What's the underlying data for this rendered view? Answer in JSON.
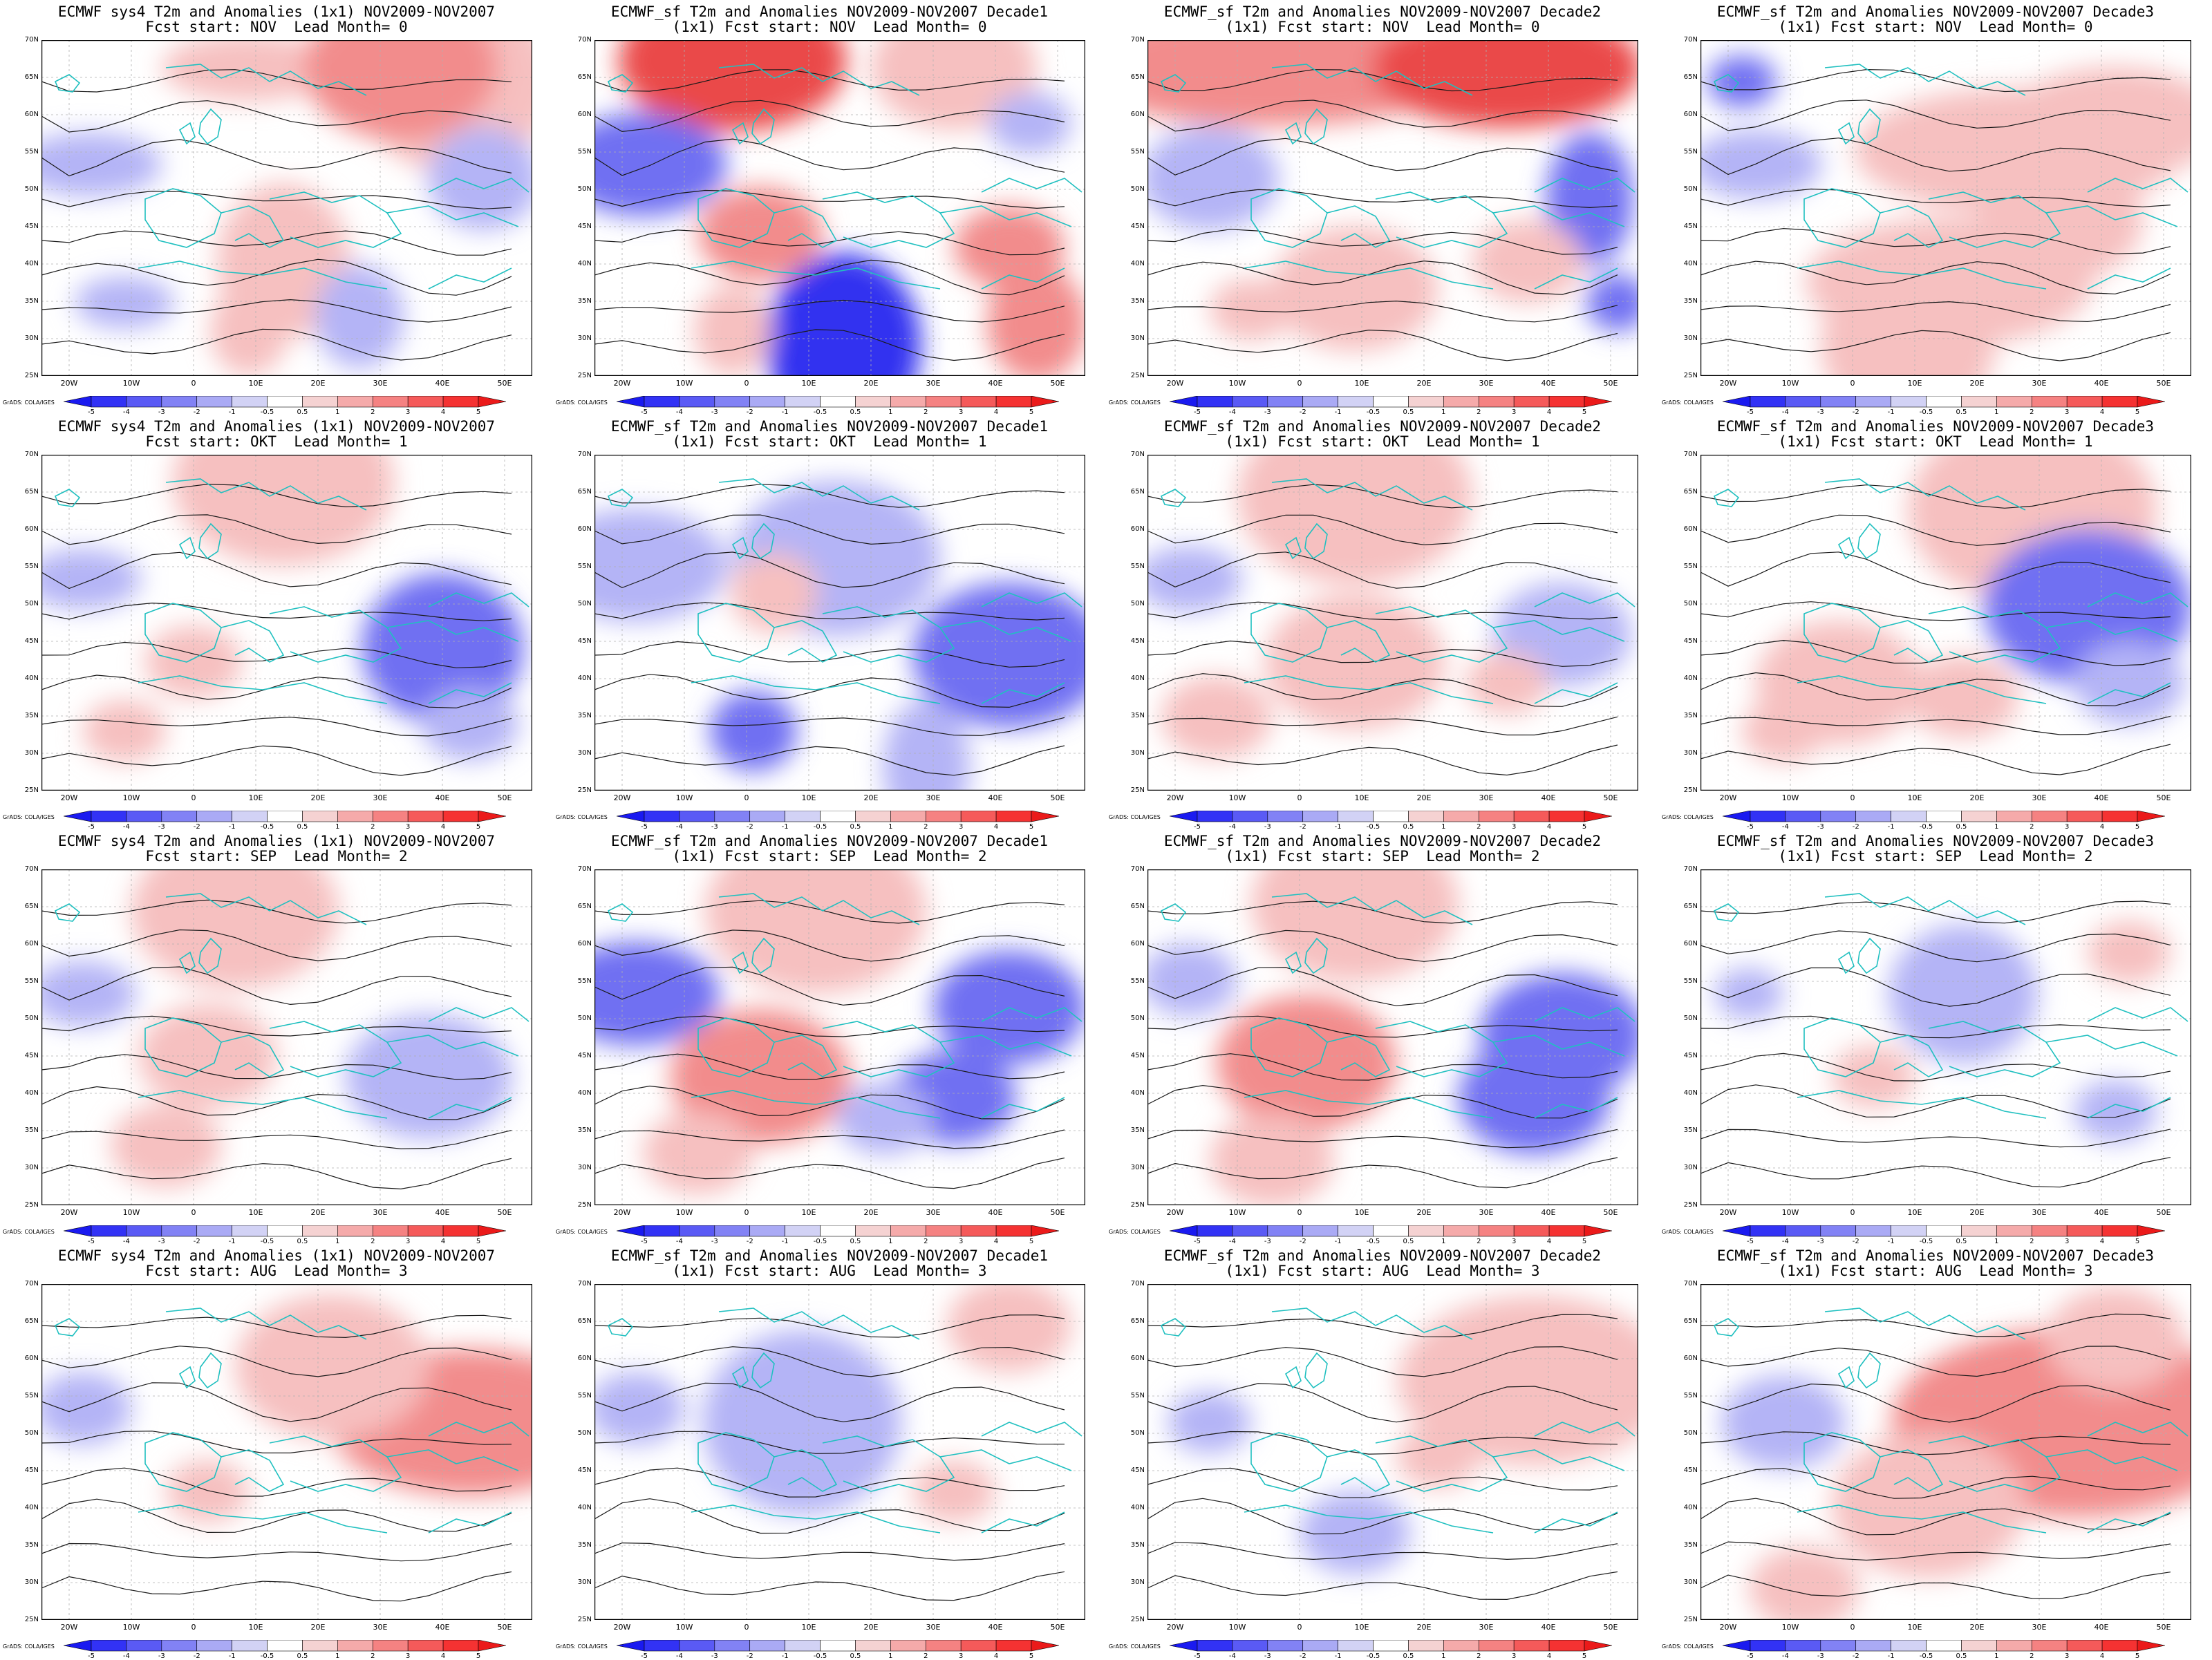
{
  "panels": [
    {
      "id": "r0c0",
      "title_line1": "ECMWF sys4 T2m and Anomalies (1x1) NOV2009-NOV2007",
      "title_line2": "Fcst start: NOV  Lead Month= 0"
    },
    {
      "id": "r0c1",
      "title_line1": "ECMWF_sf T2m and Anomalies NOV2009-NOV2007 Decade1",
      "title_line2": "(1x1) Fcst start: NOV  Lead Month= 0"
    },
    {
      "id": "r0c2",
      "title_line1": "ECMWF_sf T2m and Anomalies NOV2009-NOV2007 Decade2",
      "title_line2": "(1x1) Fcst start: NOV  Lead Month= 0"
    },
    {
      "id": "r0c3",
      "title_line1": "ECMWF_sf T2m and Anomalies NOV2009-NOV2007 Decade3",
      "title_line2": "(1x1) Fcst start: NOV  Lead Month= 0"
    },
    {
      "id": "r1c0",
      "title_line1": "ECMWF sys4 T2m and Anomalies (1x1) NOV2009-NOV2007",
      "title_line2": "Fcst start: OKT  Lead Month= 1"
    },
    {
      "id": "r1c1",
      "title_line1": "ECMWF_sf T2m and Anomalies NOV2009-NOV2007 Decade1",
      "title_line2": "(1x1) Fcst start: OKT  Lead Month= 1"
    },
    {
      "id": "r1c2",
      "title_line1": "ECMWF_sf T2m and Anomalies NOV2009-NOV2007 Decade2",
      "title_line2": "(1x1) Fcst start: OKT  Lead Month= 1"
    },
    {
      "id": "r1c3",
      "title_line1": "ECMWF_sf T2m and Anomalies NOV2009-NOV2007 Decade3",
      "title_line2": "(1x1) Fcst start: OKT  Lead Month= 1"
    },
    {
      "id": "r2c0",
      "title_line1": "ECMWF sys4 T2m and Anomalies (1x1) NOV2009-NOV2007",
      "title_line2": "Fcst start: SEP  Lead Month= 2"
    },
    {
      "id": "r2c1",
      "title_line1": "ECMWF_sf T2m and Anomalies NOV2009-NOV2007 Decade1",
      "title_line2": "(1x1) Fcst start: SEP  Lead Month= 2"
    },
    {
      "id": "r2c2",
      "title_line1": "ECMWF_sf T2m and Anomalies NOV2009-NOV2007 Decade2",
      "title_line2": "(1x1) Fcst start: SEP  Lead Month= 2"
    },
    {
      "id": "r2c3",
      "title_line1": "ECMWF_sf T2m and Anomalies NOV2009-NOV2007 Decade3",
      "title_line2": "(1x1) Fcst start: SEP  Lead Month= 2"
    },
    {
      "id": "r3c0",
      "title_line1": "ECMWF sys4 T2m and Anomalies (1x1) NOV2009-NOV2007",
      "title_line2": "Fcst start: AUG  Lead Month= 3"
    },
    {
      "id": "r3c1",
      "title_line1": "ECMWF_sf T2m and Anomalies NOV2009-NOV2007 Decade1",
      "title_line2": "(1x1) Fcst start: AUG  Lead Month= 3"
    },
    {
      "id": "r3c2",
      "title_line1": "ECMWF_sf T2m and Anomalies NOV2009-NOV2007 Decade2",
      "title_line2": "(1x1) Fcst start: AUG  Lead Month= 3"
    },
    {
      "id": "r3c3",
      "title_line1": "ECMWF_sf T2m and Anomalies NOV2009-NOV2007 Decade3",
      "title_line2": "(1x1) Fcst start: AUG  Lead Month= 3"
    }
  ],
  "lat_labels": [
    "70N",
    "65N",
    "60N",
    "55N",
    "50N",
    "45N",
    "40N",
    "35N",
    "30N",
    "25N"
  ],
  "lon_labels": [
    "20W",
    "10W",
    "0",
    "10E",
    "20E",
    "30E",
    "40E",
    "50E"
  ],
  "colorbar": {
    "labels": [
      "-5",
      "-4",
      "-3",
      "-2",
      "-1",
      "-0.5",
      "0.5",
      "1",
      "2",
      "3",
      "4",
      "5"
    ],
    "colors": [
      "#1a1af0",
      "#3232f5",
      "#5a5af5",
      "#8282f5",
      "#aaaaf5",
      "#d2d2f5",
      "#ffffff",
      "#f5d2d2",
      "#f5aaaa",
      "#f58282",
      "#f55a5a",
      "#f53232",
      "#eb1a1a"
    ]
  },
  "credit": "GrADS: COLA/IGES",
  "colors": {
    "coast": "#20c0c0",
    "contour": "#1a1a1a",
    "grid": "#b0b0b0"
  },
  "anomalies": [
    [
      [
        300,
        40,
        90,
        1.4,
        1
      ],
      [
        600,
        60,
        160,
        0.9,
        1
      ],
      [
        520,
        40,
        140,
        1.0,
        2
      ],
      [
        70,
        180,
        80,
        1.3,
        -1
      ],
      [
        350,
        320,
        120,
        0.8,
        1
      ],
      [
        640,
        200,
        90,
        0.9,
        -1
      ],
      [
        120,
        380,
        60,
        1.2,
        -1
      ],
      [
        460,
        400,
        80,
        0.8,
        -1
      ],
      [
        300,
        420,
        70,
        0.8,
        1
      ]
    ],
    [
      [
        200,
        30,
        150,
        1.1,
        3
      ],
      [
        520,
        40,
        120,
        1.0,
        1
      ],
      [
        70,
        180,
        110,
        1.1,
        -2
      ],
      [
        240,
        280,
        90,
        1.0,
        2
      ],
      [
        360,
        440,
        140,
        0.8,
        -3
      ],
      [
        640,
        410,
        90,
        0.8,
        2
      ],
      [
        600,
        300,
        80,
        1.0,
        2
      ],
      [
        200,
        420,
        70,
        0.8,
        1
      ],
      [
        630,
        120,
        60,
        1.0,
        -1
      ]
    ],
    [
      [
        180,
        40,
        180,
        1.6,
        2
      ],
      [
        520,
        40,
        150,
        1.3,
        3
      ],
      [
        90,
        200,
        100,
        1.0,
        -1
      ],
      [
        640,
        230,
        90,
        0.7,
        -2
      ],
      [
        300,
        360,
        120,
        1.0,
        1
      ],
      [
        150,
        390,
        60,
        1.0,
        1
      ],
      [
        550,
        320,
        80,
        1.0,
        1
      ],
      [
        680,
        380,
        50,
        0.9,
        -2
      ]
    ],
    [
      [
        60,
        60,
        50,
        1.0,
        -2
      ],
      [
        460,
        160,
        170,
        1.4,
        1
      ],
      [
        600,
        120,
        130,
        1.2,
        1
      ],
      [
        80,
        180,
        80,
        1.2,
        -1
      ],
      [
        360,
        350,
        160,
        1.3,
        1
      ],
      [
        300,
        440,
        140,
        0.9,
        1
      ],
      [
        520,
        260,
        120,
        1.0,
        1
      ]
    ],
    [
      [
        350,
        40,
        160,
        1.0,
        1
      ],
      [
        60,
        180,
        70,
        1.2,
        -1
      ],
      [
        580,
        280,
        130,
        0.9,
        -2
      ],
      [
        220,
        300,
        70,
        1.0,
        1
      ],
      [
        120,
        400,
        60,
        1.0,
        1
      ],
      [
        620,
        390,
        70,
        1.0,
        -1
      ]
    ],
    [
      [
        60,
        160,
        120,
        1.1,
        -1
      ],
      [
        350,
        150,
        150,
        1.0,
        -1
      ],
      [
        600,
        290,
        140,
        1.0,
        -2
      ],
      [
        230,
        400,
        70,
        0.9,
        -2
      ],
      [
        260,
        200,
        70,
        0.9,
        1
      ],
      [
        480,
        450,
        90,
        0.7,
        -1
      ]
    ],
    [
      [
        300,
        60,
        170,
        1.0,
        1
      ],
      [
        60,
        180,
        70,
        1.1,
        -1
      ],
      [
        300,
        300,
        130,
        1.0,
        1
      ],
      [
        100,
        380,
        80,
        1.0,
        1
      ],
      [
        600,
        260,
        100,
        1.0,
        -1
      ],
      [
        520,
        330,
        60,
        1.0,
        1
      ]
    ],
    [
      [
        480,
        80,
        180,
        1.0,
        1
      ],
      [
        560,
        220,
        150,
        1.0,
        -2
      ],
      [
        200,
        330,
        120,
        1.0,
        1
      ],
      [
        620,
        330,
        80,
        1.0,
        -1
      ],
      [
        120,
        400,
        60,
        1.0,
        1
      ],
      [
        380,
        350,
        80,
        1.0,
        1
      ]
    ],
    [
      [
        280,
        60,
        150,
        1.0,
        1
      ],
      [
        60,
        180,
        70,
        1.1,
        -1
      ],
      [
        240,
        270,
        100,
        1.0,
        1
      ],
      [
        560,
        300,
        120,
        1.0,
        -1
      ],
      [
        180,
        400,
        80,
        1.0,
        1
      ]
    ],
    [
      [
        320,
        60,
        160,
        1.0,
        1
      ],
      [
        60,
        180,
        110,
        1.1,
        -2
      ],
      [
        240,
        300,
        130,
        1.0,
        2
      ],
      [
        600,
        200,
        110,
        1.0,
        -2
      ],
      [
        520,
        330,
        90,
        1.0,
        -2
      ],
      [
        150,
        410,
        80,
        1.0,
        1
      ],
      [
        420,
        360,
        70,
        1.0,
        -1
      ]
    ],
    [
      [
        300,
        50,
        150,
        1.0,
        1
      ],
      [
        60,
        160,
        70,
        1.0,
        -1
      ],
      [
        230,
        280,
        130,
        1.0,
        2
      ],
      [
        600,
        240,
        120,
        1.0,
        -2
      ],
      [
        560,
        330,
        110,
        1.0,
        -2
      ],
      [
        180,
        420,
        90,
        1.0,
        1
      ]
    ],
    [
      [
        380,
        180,
        120,
        0.9,
        -1
      ],
      [
        70,
        180,
        50,
        1.0,
        -1
      ],
      [
        250,
        300,
        60,
        1.0,
        1
      ],
      [
        600,
        350,
        60,
        1.0,
        -1
      ],
      [
        620,
        120,
        60,
        1.0,
        1
      ]
    ],
    [
      [
        620,
        200,
        170,
        1.2,
        2
      ],
      [
        420,
        120,
        140,
        1.0,
        1
      ],
      [
        60,
        180,
        70,
        1.0,
        -1
      ],
      [
        240,
        300,
        60,
        1.0,
        1
      ]
    ],
    [
      [
        300,
        200,
        160,
        0.9,
        -1
      ],
      [
        60,
        180,
        70,
        1.0,
        -1
      ],
      [
        600,
        60,
        90,
        1.0,
        1
      ],
      [
        520,
        300,
        60,
        1.0,
        1
      ]
    ],
    [
      [
        560,
        140,
        180,
        1.1,
        1
      ],
      [
        90,
        200,
        60,
        1.0,
        -1
      ],
      [
        300,
        360,
        80,
        1.0,
        -1
      ],
      [
        420,
        250,
        60,
        1.0,
        1
      ]
    ],
    [
      [
        540,
        200,
        220,
        1.2,
        2
      ],
      [
        120,
        200,
        90,
        1.0,
        -1
      ],
      [
        330,
        320,
        140,
        1.0,
        1
      ],
      [
        600,
        80,
        100,
        1.0,
        1
      ],
      [
        150,
        440,
        80,
        1.0,
        1
      ]
    ]
  ]
}
